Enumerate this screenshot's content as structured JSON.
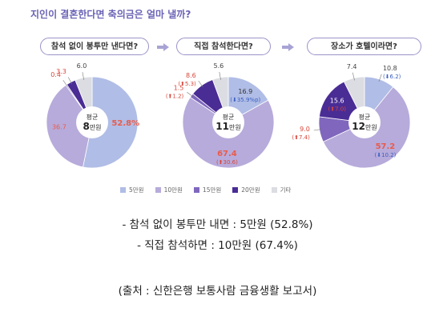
{
  "title": "지인이 결혼한다면 축의금은 얼마 낼까?",
  "chart_data": {
    "type": "pie",
    "legend": [
      "5만원",
      "10만원",
      "15만원",
      "20만원",
      "기타"
    ],
    "colors": [
      "#b0bde6",
      "#b7abdb",
      "#8067bd",
      "#4a2c95",
      "#dcdde2"
    ],
    "charts": [
      {
        "question": "참석 없이 봉투만 낸다면?",
        "center_top": "평균",
        "center_value": "8",
        "center_unit": "만원",
        "values": [
          52.8,
          36.7,
          0.4,
          3.3,
          6.0
        ],
        "labels": [
          "52.8%",
          "36.7",
          "0.4",
          "3.3",
          "6.0"
        ],
        "changes": [
          "",
          "",
          "",
          "",
          ""
        ]
      },
      {
        "question": "직접 참석한다면?",
        "center_top": "평균",
        "center_value": "11",
        "center_unit": "만원",
        "values": [
          16.9,
          67.4,
          1.5,
          8.6,
          5.6
        ],
        "labels": [
          "16.9",
          "67.4",
          "1.5",
          "8.6",
          "5.6"
        ],
        "changes": [
          "(⬇35.9%p)",
          "(⬆30.6)",
          "(⬆1.2)",
          "(⬆5.3)",
          ""
        ]
      },
      {
        "question": "장소가 호텔이라면?",
        "center_top": "평균",
        "center_value": "12",
        "center_unit": "만원",
        "values": [
          10.8,
          57.2,
          9.0,
          15.6,
          7.4
        ],
        "labels": [
          "10.8",
          "57.2",
          "9.0",
          "15.6",
          "7.4"
        ],
        "changes": [
          "(⬇6.2)",
          "(⬇10.2)",
          "(⬆7.4)",
          "(⬆7.0)",
          ""
        ]
      }
    ]
  },
  "notes": [
    "- 참석 없이 봉투만 내면 : 5만원 (52.8%)",
    "- 직접 참석하면 : 10만원 (67.4%)"
  ],
  "source": "(출처 : 신한은행 보통사람 금융생활 보고서)"
}
